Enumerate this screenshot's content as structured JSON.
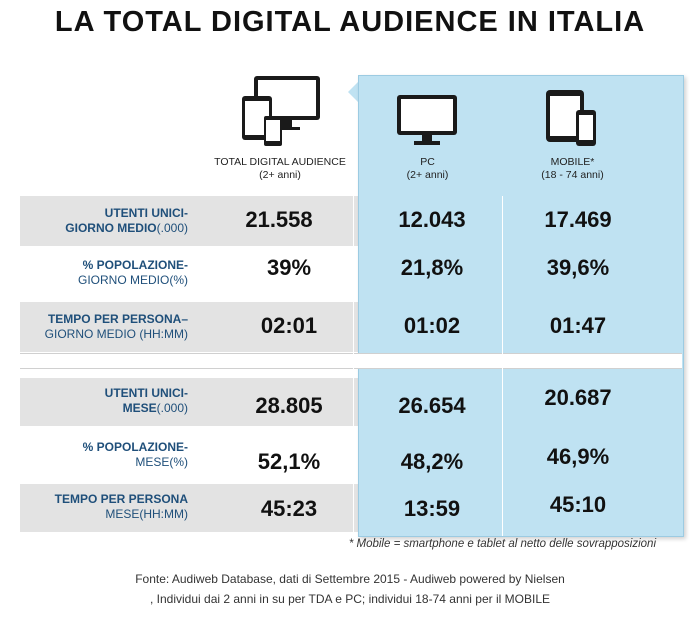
{
  "title": "LA TOTAL DIGITAL AUDIENCE IN ITALIA",
  "chart_data": {
    "type": "table",
    "columns": [
      {
        "name": "TOTAL DIGITAL AUDIENCE",
        "sub": "(2+ anni)",
        "icon": "multi-device-icon"
      },
      {
        "name": "PC",
        "sub": "(2+ anni)",
        "icon": "monitor-icon"
      },
      {
        "name": "MOBILE*",
        "sub": "(18 - 74 anni)",
        "icon": "tablet-phone-icon"
      }
    ],
    "rows": [
      {
        "l1": "UTENTI UNICI-",
        "l2a": "GIORNO MEDIO",
        "l2b": "(.000)",
        "values": [
          "21.558",
          "12.043",
          "17.469"
        ]
      },
      {
        "l1": "% POPOLAZIONE-",
        "l2a": "GIORNO MEDIO(%)",
        "l2b": "",
        "values": [
          "39%",
          "21,8%",
          "39,6%"
        ]
      },
      {
        "l1": "TEMPO PER PERSONA–",
        "l2a": "GIORNO MEDIO (HH:MM)",
        "l2b": "",
        "values": [
          "02:01",
          "01:02",
          "01:47"
        ]
      },
      {
        "l1": "UTENTI UNICI-",
        "l2a": "MESE",
        "l2b": "(.000)",
        "values": [
          "28.805",
          "26.654",
          "20.687"
        ]
      },
      {
        "l1": "% POPOLAZIONE-",
        "l2a": "MESE(%)",
        "l2b": "",
        "values": [
          "52,1%",
          "48,2%",
          "46,9%"
        ]
      },
      {
        "l1": "TEMPO PER PERSONA",
        "l2a": "MESE(HH:MM)",
        "l2b": "",
        "values": [
          "45:23",
          "13:59",
          "45:10"
        ]
      }
    ]
  },
  "footnote": "* Mobile = smartphone e tablet al netto delle sovrapposizioni",
  "source_line1": "Fonte: Audiweb Database, dati di Settembre 2015 - Audiweb powered by Nielsen",
  "source_line2": ", Individui dai 2 anni in su  per TDA e PC; individui 18-74 anni per il MOBILE",
  "colors": {
    "label": "#1f4f7a",
    "panel": "#bfe2f2",
    "row": "#e3e3e3"
  }
}
